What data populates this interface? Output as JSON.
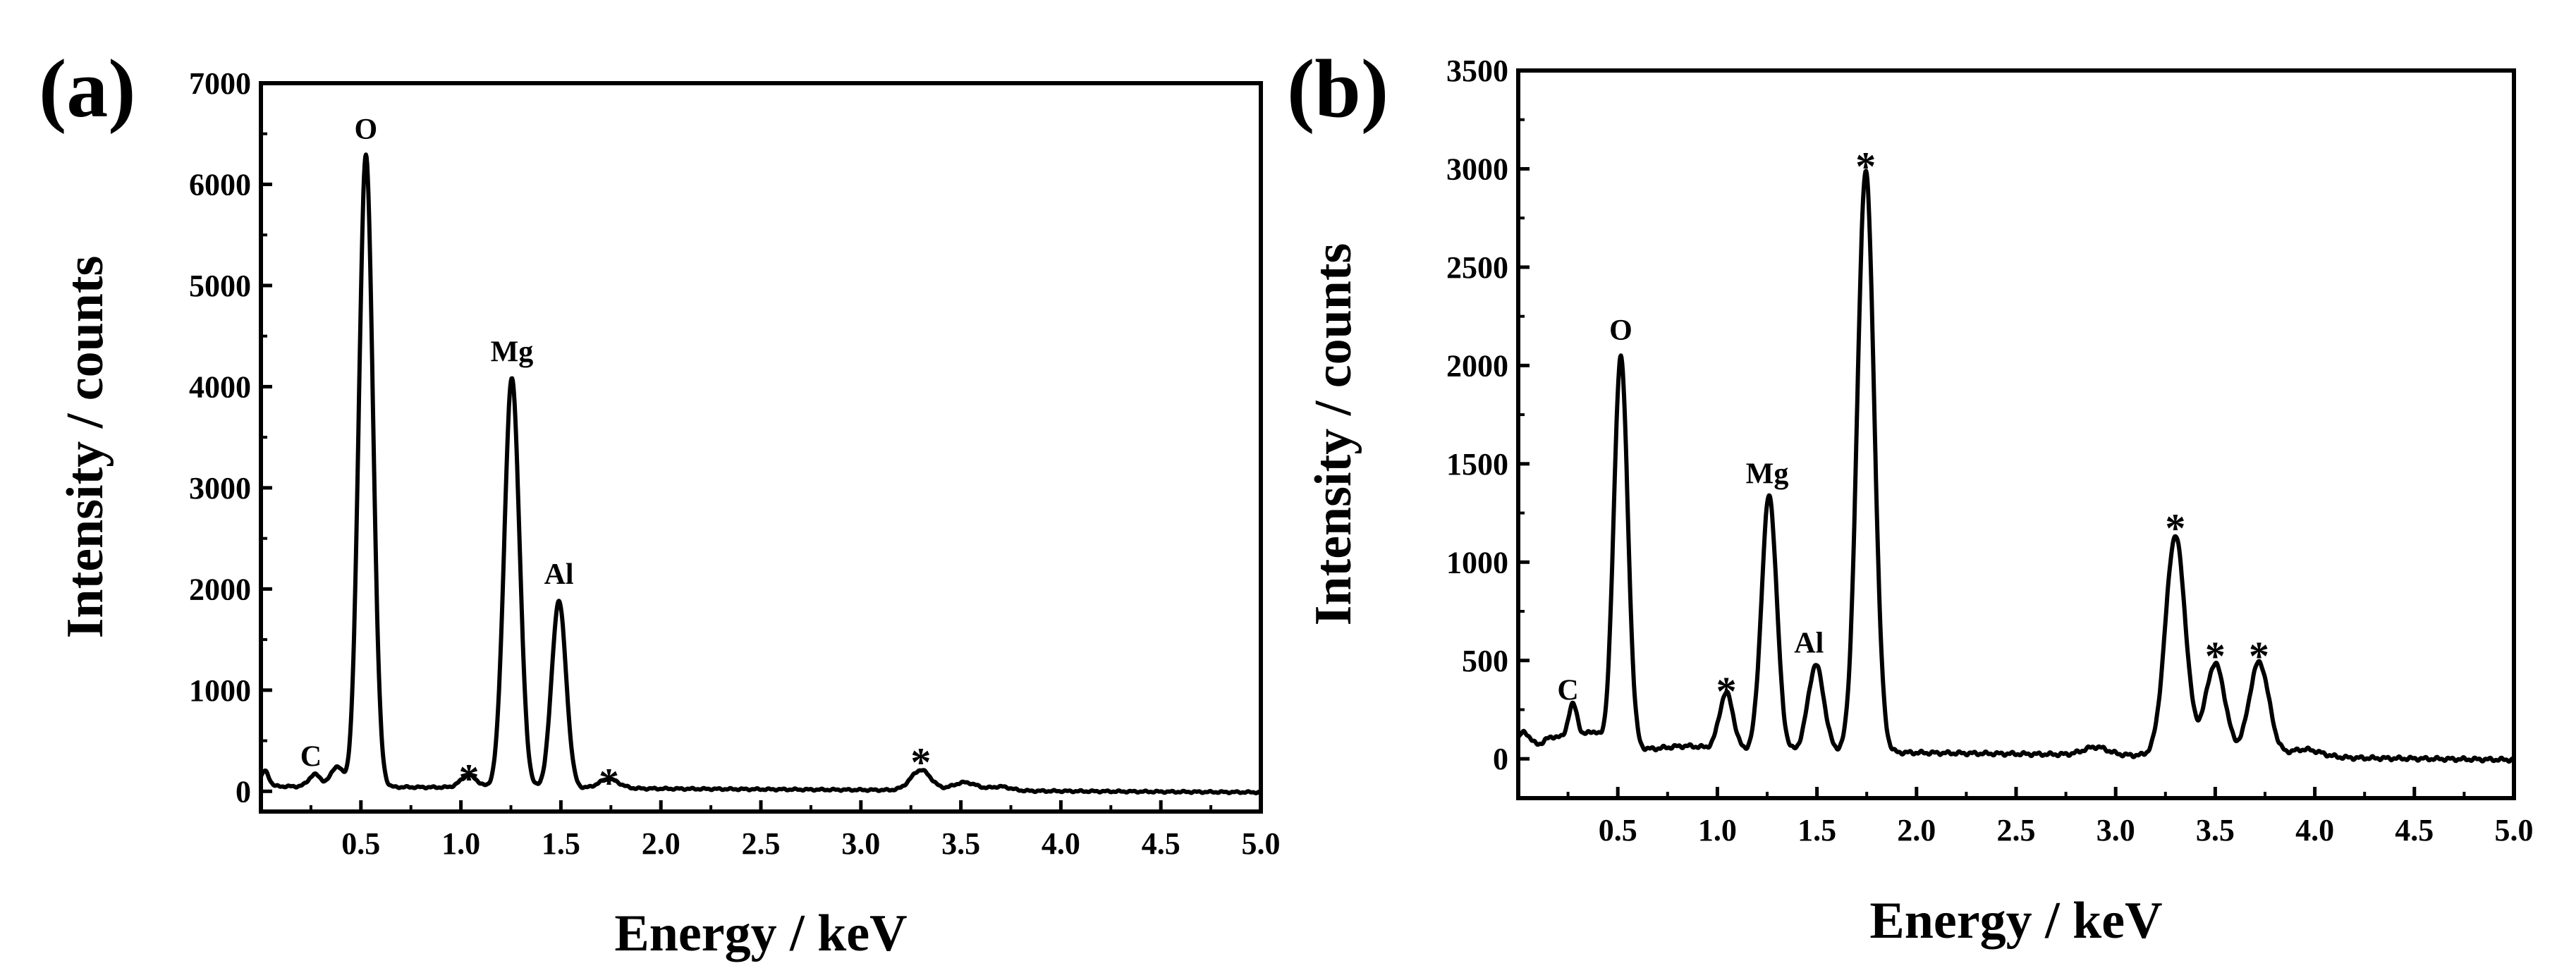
{
  "chart_data": [
    {
      "type": "line",
      "panel_label": "(a)",
      "xlabel": "Energy / keV",
      "ylabel": "Intensity / counts",
      "xlim": [
        0.0,
        5.0
      ],
      "ylim": [
        -200,
        7000
      ],
      "xticks": [
        0.5,
        1.0,
        1.5,
        2.0,
        2.5,
        3.0,
        3.5,
        4.0,
        4.5,
        5.0
      ],
      "xtick_labels": [
        "0.5",
        "1.0",
        "1.5",
        "2.0",
        "2.5",
        "3.0",
        "3.5",
        "4.0",
        "4.5",
        "5.0"
      ],
      "yticks": [
        0,
        1000,
        2000,
        3000,
        4000,
        5000,
        6000,
        7000
      ],
      "ytick_labels": [
        "0",
        "1000",
        "2000",
        "3000",
        "4000",
        "5000",
        "6000",
        "7000"
      ],
      "baseline": 50,
      "peaks": [
        {
          "x": 0.02,
          "y": 150,
          "w": 0.02
        },
        {
          "x": 0.27,
          "y": 120,
          "w": 0.03
        },
        {
          "x": 0.38,
          "y": 200,
          "w": 0.03
        },
        {
          "x": 0.525,
          "y": 6250,
          "w": 0.035
        },
        {
          "x": 1.04,
          "y": 120,
          "w": 0.04
        },
        {
          "x": 1.255,
          "y": 4050,
          "w": 0.038
        },
        {
          "x": 1.49,
          "y": 1850,
          "w": 0.036
        },
        {
          "x": 1.74,
          "y": 90,
          "w": 0.05
        },
        {
          "x": 3.3,
          "y": 200,
          "w": 0.05
        },
        {
          "x": 3.52,
          "y": 80,
          "w": 0.06
        },
        {
          "x": 3.7,
          "y": 40,
          "w": 0.05
        }
      ],
      "annotations": [
        {
          "text": "O",
          "x": 0.525,
          "y": 6450,
          "kind": "element"
        },
        {
          "text": "Mg",
          "x": 1.255,
          "y": 4250,
          "kind": "element"
        },
        {
          "text": "Al",
          "x": 1.49,
          "y": 2050,
          "kind": "element"
        },
        {
          "text": "C",
          "x": 0.25,
          "y": 250,
          "kind": "element"
        },
        {
          "text": "*",
          "x": 1.04,
          "y": 200,
          "kind": "star"
        },
        {
          "text": "*",
          "x": 1.74,
          "y": 160,
          "kind": "star"
        },
        {
          "text": "*",
          "x": 3.3,
          "y": 360,
          "kind": "star"
        }
      ]
    },
    {
      "type": "line",
      "panel_label": "(b)",
      "xlabel": "Energy / keV",
      "ylabel": "Intensity / counts",
      "xlim": [
        0.0,
        5.0
      ],
      "ylim": [
        -200,
        3500
      ],
      "xticks": [
        0.5,
        1.0,
        1.5,
        2.0,
        2.5,
        3.0,
        3.5,
        4.0,
        4.5,
        5.0
      ],
      "xtick_labels": [
        "0.5",
        "1.0",
        "1.5",
        "2.0",
        "2.5",
        "3.0",
        "3.5",
        "4.0",
        "4.5",
        "5.0"
      ],
      "yticks": [
        0,
        500,
        1000,
        1500,
        2000,
        2500,
        3000,
        3500
      ],
      "ytick_labels": [
        "0",
        "500",
        "1000",
        "1500",
        "2000",
        "2500",
        "3000",
        "3500"
      ],
      "baseline": 55,
      "peaks": [
        {
          "x": 0.03,
          "y": 80,
          "w": 0.03
        },
        {
          "x": 0.18,
          "y": 60,
          "w": 0.05
        },
        {
          "x": 0.275,
          "y": 210,
          "w": 0.025
        },
        {
          "x": 0.37,
          "y": 90,
          "w": 0.04
        },
        {
          "x": 0.515,
          "y": 2000,
          "w": 0.035
        },
        {
          "x": 0.85,
          "y": 20,
          "w": 0.1
        },
        {
          "x": 1.045,
          "y": 290,
          "w": 0.035
        },
        {
          "x": 1.26,
          "y": 1300,
          "w": 0.038
        },
        {
          "x": 1.495,
          "y": 440,
          "w": 0.04
        },
        {
          "x": 1.745,
          "y": 2960,
          "w": 0.042
        },
        {
          "x": 2.9,
          "y": 40,
          "w": 0.06
        },
        {
          "x": 3.3,
          "y": 1120,
          "w": 0.05
        },
        {
          "x": 3.5,
          "y": 470,
          "w": 0.05
        },
        {
          "x": 3.72,
          "y": 480,
          "w": 0.05
        },
        {
          "x": 3.95,
          "y": 40,
          "w": 0.08
        }
      ],
      "annotations": [
        {
          "text": "O",
          "x": 0.515,
          "y": 2130,
          "kind": "element"
        },
        {
          "text": "Mg",
          "x": 1.25,
          "y": 1400,
          "kind": "element"
        },
        {
          "text": "Al",
          "x": 1.46,
          "y": 540,
          "kind": "element"
        },
        {
          "text": "C",
          "x": 0.25,
          "y": 300,
          "kind": "element"
        },
        {
          "text": "*",
          "x": 1.045,
          "y": 380,
          "kind": "star"
        },
        {
          "text": "*",
          "x": 1.745,
          "y": 3050,
          "kind": "star"
        },
        {
          "text": "*",
          "x": 3.3,
          "y": 1210,
          "kind": "star"
        },
        {
          "text": "*",
          "x": 3.5,
          "y": 560,
          "kind": "star"
        },
        {
          "text": "*",
          "x": 3.72,
          "y": 560,
          "kind": "star"
        }
      ]
    }
  ]
}
